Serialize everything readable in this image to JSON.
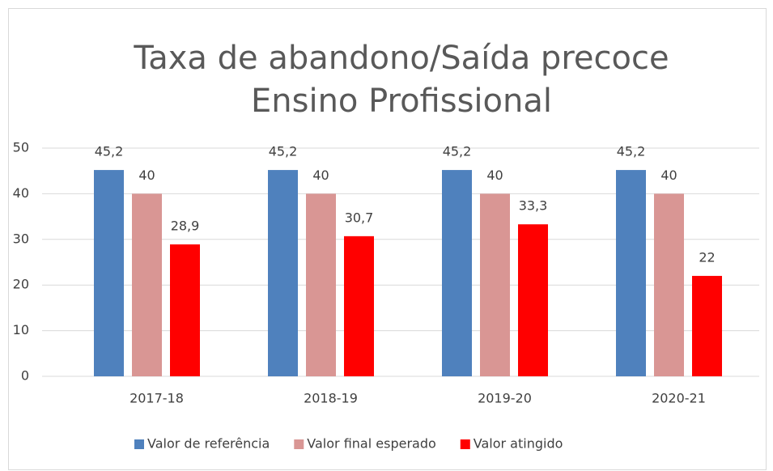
{
  "chart_data": {
    "type": "bar",
    "title": [
      "Taxa de abandono/Saída precoce",
      "Ensino Profissional"
    ],
    "categories": [
      "2017-18",
      "2018-19",
      "2019-20",
      "2020-21"
    ],
    "series": [
      {
        "name": "Valor de referência",
        "color": "#4f81bd",
        "values": [
          45.2,
          45.2,
          45.2,
          45.2
        ],
        "value_labels": [
          "45,2",
          "45,2",
          "45,2",
          "45,2"
        ]
      },
      {
        "name": "Valor final esperado",
        "color": "#d99694",
        "values": [
          40,
          40,
          40,
          40
        ],
        "value_labels": [
          "40",
          "40",
          "40",
          "40"
        ]
      },
      {
        "name": "Valor atingido",
        "color": "#ff0000",
        "values": [
          28.9,
          30.7,
          33.3,
          22
        ],
        "value_labels": [
          "28,9",
          "30,7",
          "33,3",
          "22"
        ]
      }
    ],
    "ylim": [
      0,
      50
    ],
    "yticks": [
      0,
      10,
      20,
      30,
      40,
      50
    ],
    "grid": true,
    "legend": "bottom"
  }
}
